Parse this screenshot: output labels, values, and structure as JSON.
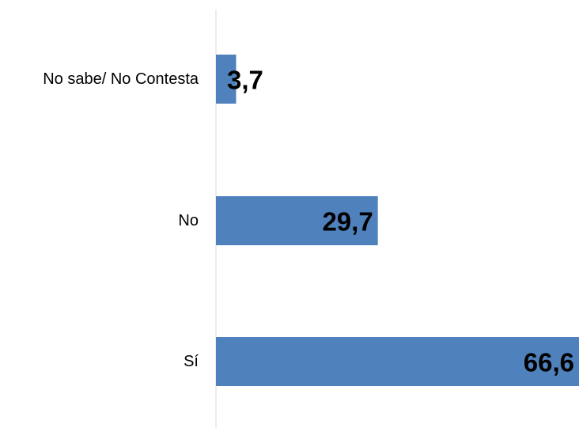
{
  "chart_data": {
    "type": "bar",
    "orientation": "horizontal",
    "categories": [
      "No sabe/ No Contesta",
      "No",
      "Sí"
    ],
    "values": [
      3.7,
      29.7,
      66.6
    ],
    "value_labels": [
      "3,7",
      "29,7",
      "66,6"
    ],
    "xlim": [
      0,
      66.6
    ],
    "grid": false,
    "legend": "none",
    "bar_color": "#4F81BD",
    "axis_color": "#D9D9D9"
  }
}
